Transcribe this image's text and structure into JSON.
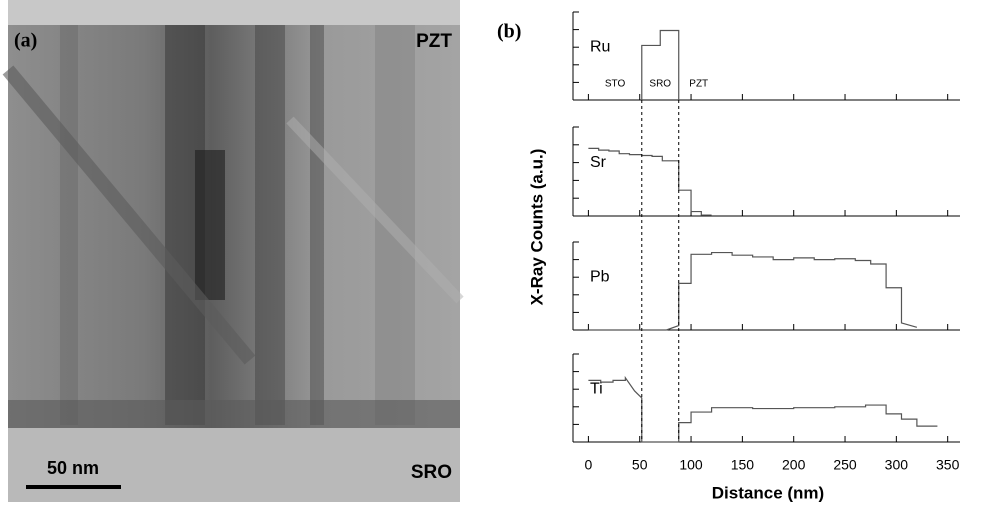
{
  "image_panel": {
    "label": "(a)",
    "top_label": "PZT",
    "bottom_label": "SRO",
    "scale_bar": "50 nm"
  },
  "chart_data": {
    "type": "line",
    "panel_label": "(b)",
    "x_label": "Distance (nm)",
    "y_label": "X-Ray Counts (a.u.)",
    "xlim": [
      -15,
      362
    ],
    "xticks": [
      0,
      50,
      100,
      150,
      200,
      250,
      300,
      350
    ],
    "boundaries": [
      52,
      88
    ],
    "regions": [
      "STO",
      "SRO",
      "PZT"
    ],
    "color": "#555555",
    "subplots": [
      {
        "name": "Ru",
        "ylim": [
          0,
          10
        ],
        "yticks": [
          0,
          2,
          4,
          6,
          8,
          10
        ],
        "x": [
          52,
          52,
          70,
          70,
          88,
          88
        ],
        "values": [
          0,
          6.2,
          6.2,
          7.9,
          7.9,
          0
        ]
      },
      {
        "name": "Sr",
        "ylim": [
          0,
          10
        ],
        "yticks": [
          0,
          2,
          4,
          6,
          8,
          10
        ],
        "x": [
          0,
          10,
          10,
          20,
          20,
          30,
          30,
          40,
          40,
          52,
          52,
          62,
          62,
          72,
          72,
          88,
          88,
          100,
          100,
          110,
          110,
          120
        ],
        "values": [
          7.6,
          7.6,
          7.4,
          7.4,
          7.3,
          7.3,
          7.0,
          7.0,
          6.9,
          6.9,
          6.8,
          6.8,
          6.7,
          6.7,
          6.2,
          6.2,
          2.9,
          2.9,
          0.5,
          0.5,
          0.1,
          0.1
        ]
      },
      {
        "name": "Pb",
        "ylim": [
          0,
          10
        ],
        "yticks": [
          0,
          2,
          4,
          6,
          8,
          10
        ],
        "x": [
          0,
          76,
          88,
          88,
          100,
          100,
          120,
          120,
          140,
          140,
          160,
          160,
          180,
          180,
          200,
          200,
          220,
          220,
          240,
          240,
          260,
          260,
          275,
          275,
          290,
          290,
          305,
          305,
          320
        ],
        "values": [
          0,
          0,
          0.5,
          5.3,
          5.3,
          8.6,
          8.6,
          8.8,
          8.8,
          8.5,
          8.5,
          8.3,
          8.3,
          8.0,
          8.0,
          8.2,
          8.2,
          8.0,
          8.0,
          8.1,
          8.1,
          7.9,
          7.9,
          7.5,
          7.5,
          4.8,
          4.8,
          0.8,
          0.3
        ]
      },
      {
        "name": "Ti",
        "ylim": [
          0,
          10
        ],
        "yticks": [
          0,
          2,
          4,
          6,
          8,
          10
        ],
        "x": [
          0,
          12,
          12,
          24,
          24,
          36,
          36,
          45,
          52,
          52,
          88,
          88,
          100,
          100,
          120,
          120,
          160,
          160,
          200,
          200,
          240,
          240,
          270,
          270,
          290,
          290,
          305,
          305,
          320,
          320,
          340
        ],
        "values": [
          7.0,
          7.0,
          6.8,
          6.8,
          7.0,
          7.0,
          7.3,
          5.8,
          5.0,
          0,
          0,
          2.2,
          2.2,
          3.4,
          3.4,
          3.9,
          3.9,
          3.8,
          3.8,
          3.9,
          3.9,
          4.0,
          4.0,
          4.2,
          4.2,
          3.2,
          3.2,
          2.6,
          2.6,
          1.8,
          1.8
        ]
      }
    ]
  }
}
